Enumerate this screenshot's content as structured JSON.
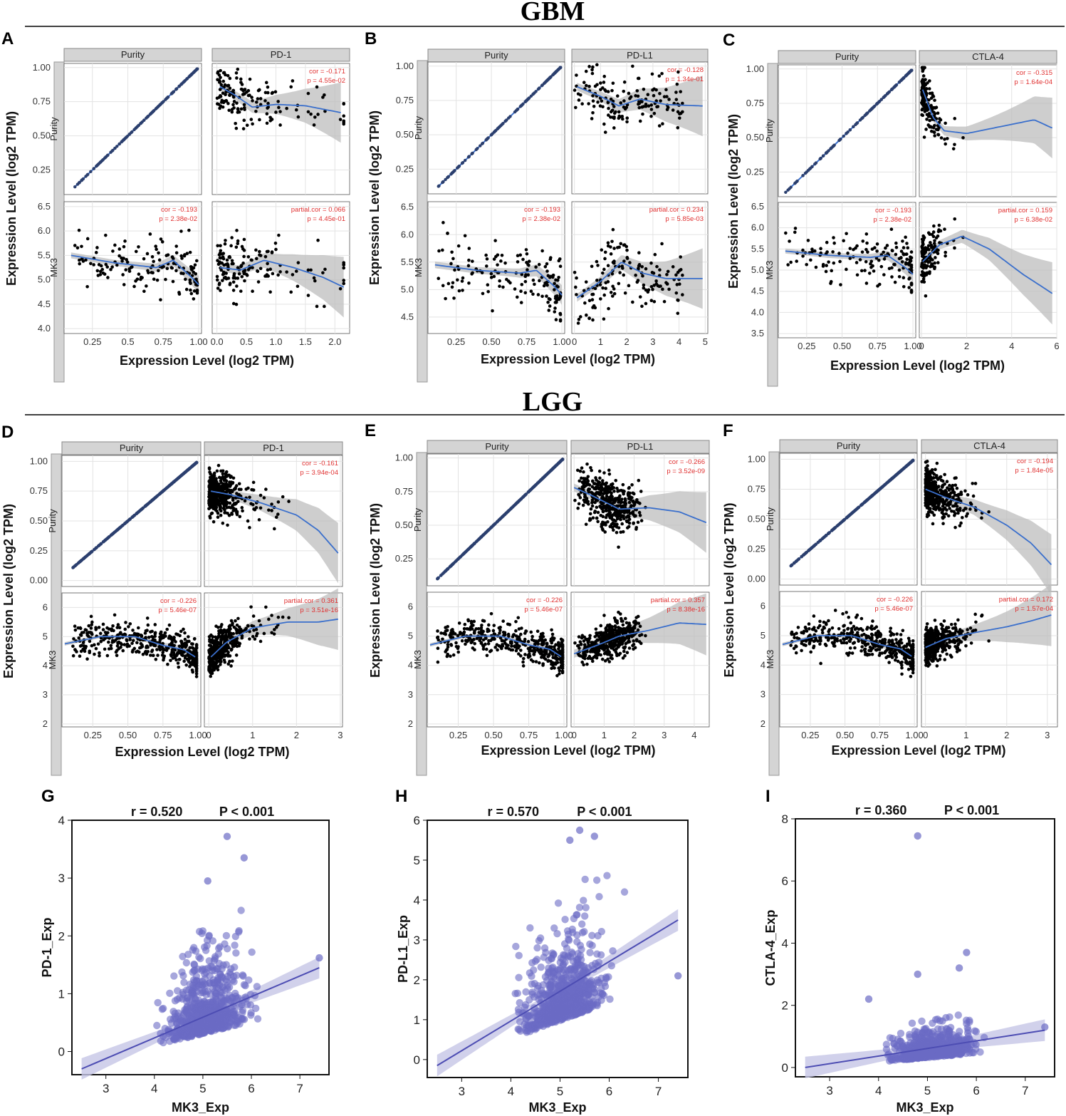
{
  "sections": {
    "top": "GBM",
    "middle": "LGG"
  },
  "colors": {
    "fit": "#3a6fcc",
    "ribbon": "#bdbdbd",
    "strip": "#d4d4d4",
    "annot": "#e03030",
    "gpoint": "#6b6bc4",
    "gline": "#4d4db3"
  },
  "chart_data": [
    {
      "panel": "A",
      "dataset": "GBM",
      "type": "scatter",
      "strips": {
        "col1": "Purity",
        "col2": "PD-1",
        "row1": "Purity",
        "row2": "MK3"
      },
      "xlabel": "Expression Level (log2 TPM)",
      "ylabel": "Expression Level (log2 TPM)",
      "col1_ticks": [
        0.25,
        0.5,
        0.75,
        1.0
      ],
      "col1_tick_labels": [
        "0.25",
        "0.5",
        "0.75",
        "1.00"
      ],
      "col1_lim": [
        0.05,
        1.02
      ],
      "col2_ticks": [
        0.0,
        0.5,
        1.0,
        1.5,
        2.0
      ],
      "col2_tick_labels": [
        "0.0",
        "0.5",
        "1.0",
        "1.5",
        "2.0"
      ],
      "col2_lim": [
        -0.08,
        2.25
      ],
      "row1_ticks": [
        0.25,
        0.5,
        0.75,
        1.0
      ],
      "row1_tick_labels": [
        "0.25",
        "0.50",
        "0.75",
        "1.00"
      ],
      "row1_lim": [
        0.07,
        1.03
      ],
      "row2_ticks": [
        4.0,
        4.5,
        5.0,
        5.5,
        6.0,
        6.5
      ],
      "row2_tick_labels": [
        "4.0",
        "4.5",
        "5.0",
        "5.5",
        "6.0",
        "6.5"
      ],
      "row2_lim": [
        3.9,
        6.6
      ],
      "annot_tr": [
        "cor = -0.171",
        "p = 4.55e-02"
      ],
      "annot_bl": [
        "cor = -0.193",
        "p = 2.38e-02"
      ],
      "annot_br": [
        "partial.cor = 0.066",
        "p = 4.45e-01"
      ],
      "fit_tr": [
        [
          0.05,
          0.86
        ],
        [
          0.3,
          0.8
        ],
        [
          0.6,
          0.71
        ],
        [
          1.0,
          0.73
        ],
        [
          1.5,
          0.72
        ],
        [
          2.1,
          0.67
        ]
      ],
      "fit_bl": [
        [
          0.1,
          5.5
        ],
        [
          0.4,
          5.35
        ],
        [
          0.7,
          5.25
        ],
        [
          0.82,
          5.4
        ],
        [
          0.95,
          5.05
        ],
        [
          1.0,
          4.9
        ]
      ],
      "fit_br": [
        [
          0.05,
          5.25
        ],
        [
          0.4,
          5.2
        ],
        [
          0.8,
          5.4
        ],
        [
          1.3,
          5.25
        ],
        [
          1.8,
          5.05
        ],
        [
          2.15,
          4.85
        ]
      ],
      "n": 150,
      "x2dist": "exp",
      "x2scale": 0.6
    },
    {
      "panel": "B",
      "dataset": "GBM",
      "type": "scatter",
      "strips": {
        "col1": "Purity",
        "col2": "PD-L1",
        "row1": "Purity",
        "row2": "MK3"
      },
      "xlabel": "Expression Level (log2 TPM)",
      "ylabel": "Expression Level (log2 TPM)",
      "col1_ticks": [
        0.25,
        0.5,
        0.75,
        1.0
      ],
      "col1_tick_labels": [
        "0.25",
        "0.50",
        "0.75",
        "1.00"
      ],
      "col1_lim": [
        0.05,
        1.02
      ],
      "col2_ticks": [
        0,
        1,
        2,
        3,
        4,
        5
      ],
      "col2_tick_labels": [
        "0",
        "1",
        "2",
        "3",
        "4",
        "5"
      ],
      "col2_lim": [
        -0.1,
        5.1
      ],
      "row1_ticks": [
        0.25,
        0.5,
        0.75,
        1.0
      ],
      "row1_tick_labels": [
        "0.25",
        "0.50",
        "0.75",
        "1.00"
      ],
      "row1_lim": [
        0.07,
        1.03
      ],
      "row2_ticks": [
        4.5,
        5.0,
        5.5,
        6.0,
        6.5
      ],
      "row2_tick_labels": [
        "4.5",
        "5.0",
        "5.5",
        "6.0",
        "6.5"
      ],
      "row2_lim": [
        4.2,
        6.6
      ],
      "annot_tr": [
        "cor = -0.128",
        "p = 1.34e-01"
      ],
      "annot_bl": [
        "cor = -0.193",
        "p = 2.38e-02"
      ],
      "annot_br": [
        "partial.cor = 0.234",
        "p = 5.85e-03"
      ],
      "fit_tr": [
        [
          0.1,
          0.85
        ],
        [
          1.0,
          0.78
        ],
        [
          1.7,
          0.71
        ],
        [
          2.5,
          0.76
        ],
        [
          3.5,
          0.72
        ],
        [
          4.9,
          0.71
        ]
      ],
      "fit_bl": [
        [
          0.1,
          5.45
        ],
        [
          0.4,
          5.35
        ],
        [
          0.7,
          5.3
        ],
        [
          0.82,
          5.35
        ],
        [
          0.95,
          5.05
        ],
        [
          1.0,
          4.9
        ]
      ],
      "fit_br": [
        [
          0.1,
          4.85
        ],
        [
          1.0,
          5.15
        ],
        [
          1.8,
          5.5
        ],
        [
          2.6,
          5.3
        ],
        [
          3.5,
          5.2
        ],
        [
          4.9,
          5.2
        ]
      ],
      "n": 150,
      "x2dist": "uni",
      "x2scale": 3.2
    },
    {
      "panel": "C",
      "dataset": "GBM",
      "type": "scatter",
      "strips": {
        "col1": "Purity",
        "col2": "CTLA-4",
        "row1": "Purity",
        "row2": "MK3"
      },
      "xlabel": "Expression Level (log2 TPM)",
      "ylabel": "Expression Level (log2 TPM)",
      "col1_ticks": [
        0.25,
        0.5,
        0.75,
        1.0
      ],
      "col1_tick_labels": [
        "0.25",
        "0.50",
        "0.75",
        "1.00"
      ],
      "col1_lim": [
        0.05,
        1.02
      ],
      "col2_ticks": [
        0,
        2,
        4,
        6
      ],
      "col2_tick_labels": [
        "0",
        "2",
        "4",
        "6"
      ],
      "col2_lim": [
        -0.1,
        6.0
      ],
      "row1_ticks": [
        0.25,
        0.5,
        0.75,
        1.0
      ],
      "row1_tick_labels": [
        "0.25",
        "0.50",
        "0.75",
        "1.00"
      ],
      "row1_lim": [
        0.07,
        1.03
      ],
      "row2_ticks": [
        3.5,
        4.0,
        4.5,
        5.0,
        5.5,
        6.0,
        6.5
      ],
      "row2_tick_labels": [
        "3.5",
        "4.0",
        "4.5",
        "5.0",
        "5.5",
        "6.0",
        "6.5"
      ],
      "row2_lim": [
        3.4,
        6.6
      ],
      "annot_tr": [
        "cor = -0.315",
        "p = 1.64e-04"
      ],
      "annot_bl": [
        "cor = -0.193",
        "p = 2.38e-02"
      ],
      "annot_br": [
        "partial.cor = 0.159",
        "p = 6.38e-02"
      ],
      "fit_tr": [
        [
          0.05,
          0.85
        ],
        [
          0.5,
          0.65
        ],
        [
          1.0,
          0.55
        ],
        [
          2.0,
          0.53
        ],
        [
          3.5,
          0.58
        ],
        [
          5.0,
          0.63
        ],
        [
          5.8,
          0.57
        ]
      ],
      "fit_bl": [
        [
          0.1,
          5.45
        ],
        [
          0.4,
          5.35
        ],
        [
          0.7,
          5.3
        ],
        [
          0.82,
          5.35
        ],
        [
          0.95,
          5.05
        ],
        [
          1.0,
          4.9
        ]
      ],
      "fit_br": [
        [
          0.05,
          5.2
        ],
        [
          0.8,
          5.6
        ],
        [
          1.8,
          5.8
        ],
        [
          3.0,
          5.5
        ],
        [
          4.5,
          4.9
        ],
        [
          5.8,
          4.45
        ]
      ],
      "n": 150,
      "x2dist": "exp",
      "x2scale": 0.35
    },
    {
      "panel": "D",
      "dataset": "LGG",
      "type": "scatter",
      "strips": {
        "col1": "Purity",
        "col2": "PD-1",
        "row1": "Purity",
        "row2": "MK3"
      },
      "xlabel": "Expression Level (log2 TPM)",
      "ylabel": "Expression Level (log2 TPM)",
      "col1_ticks": [
        0.25,
        0.5,
        0.75,
        1.0
      ],
      "col1_tick_labels": [
        "0.25",
        "0.50",
        "0.75",
        "1.00"
      ],
      "col1_lim": [
        0.03,
        1.02
      ],
      "col2_ticks": [
        0,
        1,
        2,
        3
      ],
      "col2_tick_labels": [
        "0",
        "1",
        "2",
        "3"
      ],
      "col2_lim": [
        -0.1,
        3.05
      ],
      "row1_ticks": [
        0.0,
        0.25,
        0.5,
        0.75,
        1.0
      ],
      "row1_tick_labels": [
        "0.00",
        "0.25",
        "0.50",
        "0.75",
        "1.00"
      ],
      "row1_lim": [
        -0.05,
        1.05
      ],
      "row2_ticks": [
        2,
        3,
        4,
        5,
        6
      ],
      "row2_tick_labels": [
        "2",
        "3",
        "4",
        "5",
        "6"
      ],
      "row2_lim": [
        1.9,
        6.5
      ],
      "annot_tr": [
        "cor = -0.161",
        "p = 3.94e-04"
      ],
      "annot_bl": [
        "cor = -0.226",
        "p = 5.46e-07"
      ],
      "annot_br": [
        "partial.cor = 0.361",
        "p = 3.51e-16"
      ],
      "fit_tr": [
        [
          0.05,
          0.75
        ],
        [
          0.5,
          0.72
        ],
        [
          1.2,
          0.65
        ],
        [
          2.0,
          0.55
        ],
        [
          2.5,
          0.42
        ],
        [
          2.95,
          0.23
        ]
      ],
      "fit_bl": [
        [
          0.05,
          4.75
        ],
        [
          0.3,
          5.0
        ],
        [
          0.55,
          5.0
        ],
        [
          0.75,
          4.7
        ],
        [
          0.9,
          4.55
        ],
        [
          0.98,
          4.3
        ]
      ],
      "fit_br": [
        [
          0.05,
          4.3
        ],
        [
          0.4,
          4.8
        ],
        [
          1.0,
          5.3
        ],
        [
          1.8,
          5.5
        ],
        [
          2.5,
          5.5
        ],
        [
          2.95,
          5.6
        ]
      ],
      "n": 420,
      "x2dist": "exp",
      "x2scale": 0.35
    },
    {
      "panel": "E",
      "dataset": "LGG",
      "type": "scatter",
      "strips": {
        "col1": "Purity",
        "col2": "PD-L1",
        "row1": "Purity",
        "row2": "MK3"
      },
      "xlabel": "Expression Level (log2 TPM)",
      "ylabel": "Expression Level (log2 TPM)",
      "col1_ticks": [
        0.25,
        0.5,
        0.75,
        1.0
      ],
      "col1_tick_labels": [
        "0.25",
        "0.50",
        "0.75",
        "1.00"
      ],
      "col1_lim": [
        0.03,
        1.02
      ],
      "col2_ticks": [
        0,
        1,
        2,
        3,
        4
      ],
      "col2_tick_labels": [
        "0",
        "1",
        "2",
        "3",
        "4"
      ],
      "col2_lim": [
        -0.1,
        4.5
      ],
      "row1_ticks": [
        0.25,
        0.5,
        0.75,
        1.0
      ],
      "row1_tick_labels": [
        "0.25",
        "0.50",
        "0.75",
        "1.00"
      ],
      "row1_lim": [
        0.05,
        1.03
      ],
      "row2_ticks": [
        2,
        3,
        4,
        5,
        6
      ],
      "row2_tick_labels": [
        "2",
        "3",
        "4",
        "5",
        "6"
      ],
      "row2_lim": [
        1.9,
        6.5
      ],
      "annot_tr": [
        "cor = -0.266",
        "p = 3.52e-09"
      ],
      "annot_bl": [
        "cor = -0.226",
        "p = 5.46e-07"
      ],
      "annot_br": [
        "partial.cor = 0.357",
        "p = 8.38e-16"
      ],
      "fit_tr": [
        [
          0.0,
          0.78
        ],
        [
          0.6,
          0.72
        ],
        [
          1.5,
          0.62
        ],
        [
          2.5,
          0.63
        ],
        [
          3.5,
          0.6
        ],
        [
          4.4,
          0.52
        ]
      ],
      "fit_bl": [
        [
          0.05,
          4.7
        ],
        [
          0.3,
          5.0
        ],
        [
          0.55,
          5.0
        ],
        [
          0.75,
          4.7
        ],
        [
          0.9,
          4.55
        ],
        [
          0.98,
          4.3
        ]
      ],
      "fit_br": [
        [
          0.0,
          4.4
        ],
        [
          0.8,
          4.7
        ],
        [
          1.5,
          5.0
        ],
        [
          2.5,
          5.2
        ],
        [
          3.5,
          5.45
        ],
        [
          4.4,
          5.4
        ]
      ],
      "n": 420,
      "x2dist": "tri",
      "x2scale": 1.2
    },
    {
      "panel": "F",
      "dataset": "LGG",
      "type": "scatter",
      "strips": {
        "col1": "Purity",
        "col2": "CTLA-4",
        "row1": "Purity",
        "row2": "MK3"
      },
      "xlabel": "Expression Level (log2 TPM)",
      "ylabel": "Expression Level (log2 TPM)",
      "col1_ticks": [
        0.25,
        0.5,
        0.75,
        1.0
      ],
      "col1_tick_labels": [
        "0.25",
        "0.50",
        "0.75",
        "1.00"
      ],
      "col1_lim": [
        0.03,
        1.02
      ],
      "col2_ticks": [
        0,
        1,
        2,
        3
      ],
      "col2_tick_labels": [
        "0",
        "1",
        "2",
        "3"
      ],
      "col2_lim": [
        -0.1,
        3.25
      ],
      "row1_ticks": [
        0.0,
        0.25,
        0.5,
        0.75,
        1.0
      ],
      "row1_tick_labels": [
        "0.00",
        "0.25",
        "0.50",
        "0.75",
        "1.00"
      ],
      "row1_lim": [
        -0.05,
        1.05
      ],
      "row2_ticks": [
        2,
        3,
        4,
        5,
        6
      ],
      "row2_tick_labels": [
        "2",
        "3",
        "4",
        "5",
        "6"
      ],
      "row2_lim": [
        1.9,
        6.5
      ],
      "annot_tr": [
        "cor = -0.194",
        "p = 1.84e-05"
      ],
      "annot_bl": [
        "cor = -0.226",
        "p = 5.46e-07"
      ],
      "annot_br": [
        "partial.cor = 0.172",
        "p = 1.57e-04"
      ],
      "fit_tr": [
        [
          0.0,
          0.75
        ],
        [
          0.5,
          0.68
        ],
        [
          1.2,
          0.6
        ],
        [
          2.0,
          0.45
        ],
        [
          2.6,
          0.3
        ],
        [
          3.1,
          0.12
        ]
      ],
      "fit_bl": [
        [
          0.05,
          4.7
        ],
        [
          0.3,
          5.0
        ],
        [
          0.55,
          5.0
        ],
        [
          0.75,
          4.7
        ],
        [
          0.9,
          4.55
        ],
        [
          0.98,
          4.3
        ]
      ],
      "fit_br": [
        [
          0.0,
          4.6
        ],
        [
          0.5,
          4.9
        ],
        [
          1.2,
          5.1
        ],
        [
          2.0,
          5.3
        ],
        [
          2.6,
          5.5
        ],
        [
          3.1,
          5.7
        ]
      ],
      "n": 420,
      "x2dist": "exp",
      "x2scale": 0.3
    },
    {
      "panel": "G",
      "type": "scatter",
      "stat": "r = 0.520",
      "p": "P < 0.001",
      "xlabel": "MK3_Exp",
      "ylabel": "PD-1_Exp",
      "xticks": [
        3,
        4,
        5,
        6,
        7
      ],
      "yticks": [
        0,
        1,
        2,
        3,
        4
      ],
      "xlim": [
        2.3,
        7.6
      ],
      "ylim": [
        -0.4,
        4.0
      ],
      "fit": [
        [
          2.5,
          -0.3
        ],
        [
          7.4,
          1.45
        ]
      ],
      "n": 700,
      "yspread": "exp",
      "yscale": 0.55,
      "outliers": [
        [
          5.5,
          3.72
        ],
        [
          5.85,
          3.35
        ],
        [
          5.1,
          2.95
        ],
        [
          7.4,
          1.62
        ]
      ]
    },
    {
      "panel": "H",
      "type": "scatter",
      "stat": "r = 0.570",
      "p": "P < 0.001",
      "xlabel": "MK3_Exp",
      "ylabel": "PD-L1_Exp",
      "xticks": [
        3,
        4,
        5,
        6,
        7
      ],
      "yticks": [
        0,
        1,
        2,
        3,
        4,
        5,
        6
      ],
      "xlim": [
        2.3,
        7.6
      ],
      "ylim": [
        -0.45,
        6.0
      ],
      "fit": [
        [
          2.5,
          -0.15
        ],
        [
          7.4,
          3.5
        ]
      ],
      "n": 700,
      "yspread": "exp",
      "yscale": 0.9,
      "outliers": [
        [
          5.4,
          5.75
        ],
        [
          5.7,
          5.6
        ],
        [
          5.2,
          5.5
        ],
        [
          7.4,
          2.1
        ]
      ]
    },
    {
      "panel": "I",
      "type": "scatter",
      "stat": "r = 0.360",
      "p": "P < 0.001",
      "xlabel": "MK3_Exp",
      "ylabel": "CTLA-4_Exp",
      "xticks": [
        3,
        4,
        5,
        6,
        7
      ],
      "yticks": [
        0,
        2,
        4,
        6,
        8
      ],
      "xlim": [
        2.3,
        7.6
      ],
      "ylim": [
        -0.3,
        8.0
      ],
      "fit": [
        [
          2.5,
          0.0
        ],
        [
          7.4,
          1.2
        ]
      ],
      "n": 700,
      "yspread": "exp",
      "yscale": 0.35,
      "outliers": [
        [
          4.8,
          7.45
        ],
        [
          5.8,
          3.7
        ],
        [
          4.8,
          3.0
        ],
        [
          5.65,
          3.2
        ],
        [
          3.8,
          2.2
        ],
        [
          7.4,
          1.3
        ]
      ]
    }
  ]
}
